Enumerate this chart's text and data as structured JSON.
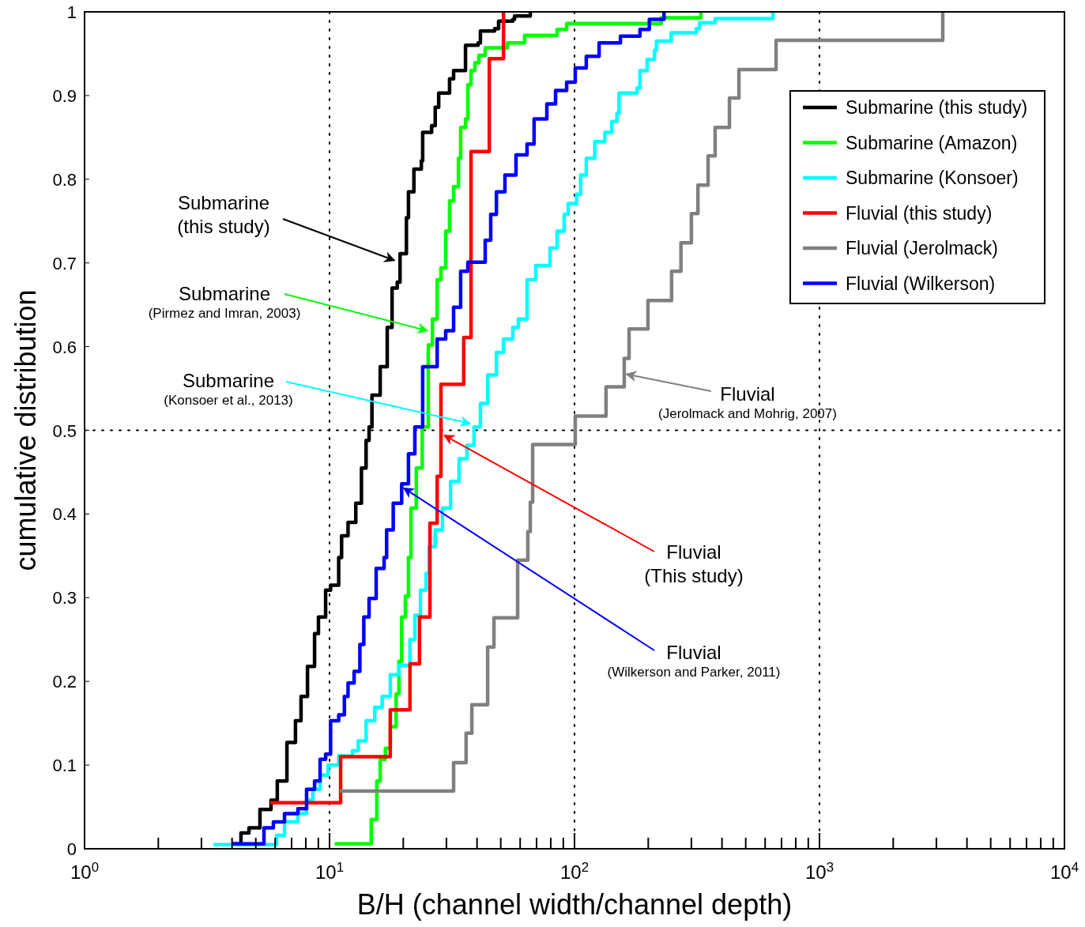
{
  "chart_data": {
    "type": "step",
    "xlabel": "B/H (channel width/channel depth)",
    "ylabel": "cumulative distribution",
    "log": "x",
    "legend": "top right",
    "xlim": [
      1,
      10000
    ],
    "ylim": [
      0,
      1
    ],
    "xticks": [
      {
        "value": 1,
        "label": "10$^{0}$"
      },
      {
        "value": 2,
        "label": null
      },
      {
        "value": 3,
        "label": null
      },
      {
        "value": 4,
        "label": null
      },
      {
        "value": 5,
        "label": null
      },
      {
        "value": 6,
        "label": null
      },
      {
        "value": 7,
        "label": null
      },
      {
        "value": 8,
        "label": null
      },
      {
        "value": 9,
        "label": null
      },
      {
        "value": 10,
        "label": "10$^{1}$"
      },
      {
        "value": 20,
        "label": null
      },
      {
        "value": 30,
        "label": null
      },
      {
        "value": 40,
        "label": null
      },
      {
        "value": 50,
        "label": null
      },
      {
        "value": 60,
        "label": null
      },
      {
        "value": 70,
        "label": null
      },
      {
        "value": 80,
        "label": null
      },
      {
        "value": 90,
        "label": null
      },
      {
        "value": 100,
        "label": "10$^{2}$"
      },
      {
        "value": 200,
        "label": null
      },
      {
        "value": 300,
        "label": null
      },
      {
        "value": 400,
        "label": null
      },
      {
        "value": 500,
        "label": null
      },
      {
        "value": 600,
        "label": null
      },
      {
        "value": 700,
        "label": null
      },
      {
        "value": 800,
        "label": null
      },
      {
        "value": 900,
        "label": null
      },
      {
        "value": 1000,
        "label": "10$^{3}$"
      },
      {
        "value": 2000,
        "label": null
      },
      {
        "value": 3000,
        "label": null
      },
      {
        "value": 4000,
        "label": null
      },
      {
        "value": 5000,
        "label": null
      },
      {
        "value": 6000,
        "label": null
      },
      {
        "value": 7000,
        "label": null
      },
      {
        "value": 8000,
        "label": null
      },
      {
        "value": 9000,
        "label": null
      },
      {
        "value": 10000,
        "label": "10$^{4}$"
      }
    ],
    "yticks": [
      0,
      0.1,
      0.2,
      0.3,
      0.4,
      0.5,
      0.6,
      0.7,
      0.8,
      0.9,
      1
    ],
    "ref_lines": [
      {
        "axis": "x",
        "value": 10,
        "color": "#000000",
        "line_style": "dotted"
      },
      {
        "axis": "x",
        "value": 100,
        "color": "#000000",
        "line_style": "dotted"
      },
      {
        "axis": "x",
        "value": 1000,
        "color": "#000000",
        "line_style": "dotted"
      },
      {
        "axis": "y",
        "value": 0.5,
        "color": "#000000",
        "line_style": "dotted"
      }
    ],
    "series": [
      {
        "name": "Submarine (this study)",
        "color": "#000000",
        "x": [
          4.01,
          4.35,
          4.69,
          5.2,
          5.77,
          6.12,
          6.7,
          7.26,
          7.65,
          8.13,
          8.69,
          9.01,
          9.64,
          10.1,
          10.9,
          11.2,
          11.9,
          12.8,
          13.5,
          14.1,
          14.5,
          14.9,
          16.1,
          17.2,
          18,
          18.9,
          19.4,
          20.6,
          21,
          22.1,
          23.7,
          24,
          26.1,
          27,
          27.9,
          30.9,
          32.1,
          35.9,
          40.4,
          41.3,
          47.2,
          49,
          56,
          56.9,
          66
        ],
        "values": [
          0.006,
          0.019,
          0.025,
          0.047,
          0.058,
          0.081,
          0.127,
          0.153,
          0.182,
          0.218,
          0.257,
          0.277,
          0.309,
          0.315,
          0.348,
          0.374,
          0.39,
          0.413,
          0.455,
          0.488,
          0.504,
          0.542,
          0.576,
          0.623,
          0.67,
          0.677,
          0.711,
          0.754,
          0.785,
          0.812,
          0.822,
          0.856,
          0.864,
          0.886,
          0.903,
          0.92,
          0.93,
          0.96,
          0.963,
          0.977,
          0.98,
          0.989,
          0.991,
          0.995,
          1
        ]
      },
      {
        "name": "Submarine (Amazon)",
        "color": "#00ff00",
        "x": [
          10.5,
          14.8,
          15.6,
          16.1,
          16.9,
          17.7,
          18.7,
          19.2,
          19.7,
          20.4,
          21,
          21.5,
          22.6,
          23.9,
          25.3,
          26.3,
          27.5,
          28.5,
          29.8,
          30.9,
          32.1,
          33.6,
          34.3,
          35.9,
          36.7,
          37.8,
          39.2,
          40.7,
          43.2,
          53.2,
          62.6,
          84.9,
          92.9,
          226,
          328
        ],
        "values": [
          0.006,
          0.035,
          0.081,
          0.107,
          0.12,
          0.146,
          0.185,
          0.224,
          0.277,
          0.302,
          0.348,
          0.407,
          0.455,
          0.504,
          0.602,
          0.633,
          0.68,
          0.694,
          0.738,
          0.774,
          0.791,
          0.825,
          0.862,
          0.872,
          0.913,
          0.93,
          0.939,
          0.948,
          0.957,
          0.963,
          0.972,
          0.979,
          0.986,
          0.993,
          1
        ]
      },
      {
        "name": "Submarine (Konsoer)",
        "color": "#00ffff",
        "x": [
          3.36,
          6.08,
          6.55,
          7.43,
          8.06,
          8.55,
          9.15,
          9.86,
          10.9,
          12.4,
          13.1,
          14.1,
          15.3,
          16.4,
          17.7,
          19.2,
          21.3,
          22.3,
          23.5,
          24.8,
          25.5,
          27,
          28.9,
          31.2,
          33.8,
          36.4,
          38.9,
          41.3,
          44.2,
          48,
          51.3,
          56,
          59,
          64,
          69.5,
          79.4,
          84.9,
          90.8,
          94.2,
          102,
          106,
          111.7,
          121,
          133,
          142,
          149,
          152,
          180,
          185,
          198,
          212,
          216,
          248,
          314,
          324,
          375,
          646
        ],
        "values": [
          0.005,
          0.016,
          0.032,
          0.042,
          0.058,
          0.071,
          0.088,
          0.1,
          0.111,
          0.117,
          0.129,
          0.153,
          0.169,
          0.182,
          0.208,
          0.219,
          0.25,
          0.279,
          0.309,
          0.329,
          0.361,
          0.381,
          0.407,
          0.439,
          0.466,
          0.482,
          0.504,
          0.532,
          0.566,
          0.593,
          0.609,
          0.623,
          0.633,
          0.68,
          0.697,
          0.718,
          0.738,
          0.758,
          0.771,
          0.782,
          0.805,
          0.825,
          0.845,
          0.856,
          0.869,
          0.879,
          0.903,
          0.909,
          0.93,
          0.943,
          0.954,
          0.965,
          0.975,
          0.98,
          0.987,
          0.992,
          1
        ]
      },
      {
        "name": "Fluvial (this study)",
        "color": "#ff0000",
        "x": [
          5.73,
          11.1,
          17.7,
          21.3,
          23.3,
          25.7,
          27.5,
          28.5,
          35.3,
          37.8,
          44.9,
          51.3
        ],
        "values": [
          0.055,
          0.11,
          0.166,
          0.221,
          0.277,
          0.389,
          0.445,
          0.555,
          0.611,
          0.833,
          0.944,
          1
        ]
      },
      {
        "name": "Fluvial (Jerolmack)",
        "color": "#808080",
        "x": [
          11,
          32.1,
          36.1,
          38.1,
          44.2,
          46.9,
          58.6,
          64.5,
          66,
          67.5,
          100.7,
          134.5,
          159.6,
          167,
          199.5,
          249,
          272,
          300,
          319,
          351,
          375,
          429,
          469,
          665,
          3186
        ],
        "values": [
          0.069,
          0.103,
          0.138,
          0.172,
          0.241,
          0.276,
          0.345,
          0.379,
          0.414,
          0.483,
          0.517,
          0.552,
          0.586,
          0.621,
          0.655,
          0.69,
          0.724,
          0.759,
          0.793,
          0.828,
          0.862,
          0.897,
          0.931,
          0.966,
          1
        ]
      },
      {
        "name": "Fluvial (Wilkerson)",
        "color": "#0000ff",
        "x": [
          4.01,
          5.4,
          5.9,
          6.55,
          7.43,
          8.06,
          8.69,
          9.15,
          9.64,
          10.1,
          10.9,
          11.5,
          11.9,
          12.6,
          13.3,
          13.8,
          14.5,
          15.5,
          16.7,
          17.1,
          18.2,
          19.7,
          21,
          22.3,
          24,
          27.5,
          29.8,
          32.1,
          34.3,
          36.7,
          43.2,
          45.5,
          48,
          52,
          57.7,
          64,
          68.4,
          77.1,
          83.7,
          92.9,
          100.7,
          111.7,
          126,
          154,
          185,
          202,
          232
        ],
        "values": [
          0.006,
          0.025,
          0.032,
          0.042,
          0.048,
          0.071,
          0.081,
          0.107,
          0.113,
          0.153,
          0.16,
          0.182,
          0.198,
          0.212,
          0.244,
          0.277,
          0.299,
          0.335,
          0.348,
          0.381,
          0.413,
          0.436,
          0.472,
          0.504,
          0.576,
          0.609,
          0.619,
          0.647,
          0.69,
          0.701,
          0.727,
          0.758,
          0.785,
          0.805,
          0.829,
          0.842,
          0.872,
          0.89,
          0.906,
          0.916,
          0.933,
          0.947,
          0.963,
          0.971,
          0.979,
          0.991,
          1
        ]
      }
    ],
    "annotations": [
      {
        "text": "Submarine\n(this study)",
        "x": 18.4,
        "y": 0.703
      },
      {
        "text": "Submarine\n(Pirmez and Imran, 2003)",
        "x": 25.1,
        "y": 0.619
      },
      {
        "text": "Submarine\n(Konsoer et al., 2013)",
        "x": 37.5,
        "y": 0.508
      },
      {
        "text": "Fluvial\n(Jerolmack and Mohrig, 2007)",
        "x": 163,
        "y": 0.567
      },
      {
        "text": "Fluvial\n(This study)",
        "x": 29.4,
        "y": 0.494
      },
      {
        "text": "Fluvial\n(Wilkerson and Parker, 2011)",
        "x": 20.1,
        "y": 0.431
      }
    ]
  }
}
